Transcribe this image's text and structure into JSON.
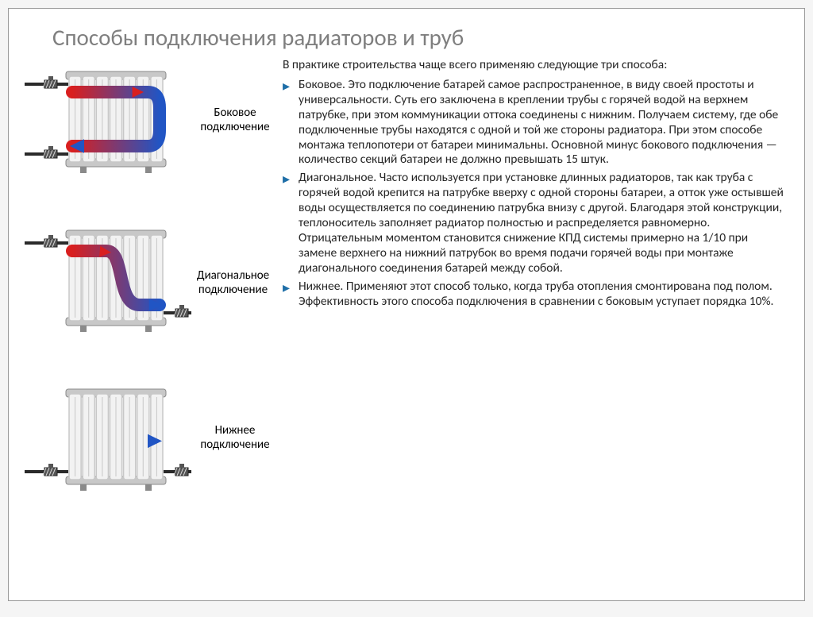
{
  "title": "Способы подключения радиаторов и труб",
  "intro": "В практике строительства чаще всего применяю следующие три способа:",
  "bullets": [
    "Боковое. Это подключение батарей самое распространенное, в виду своей простоты и универсальности. Суть его заключена в креплении трубы с горячей водой на верхнем патрубке, при этом коммуникации оттока соединены с нижним. Получаем систему, где обе подключенные трубы находятся с одной и той же стороны радиатора. При этом способе монтажа теплопотери от батареи минимальны. Основной минус бокового подключения — количество секций батареи не должно превышать 15 штук.",
    "Диагональное. Часто используется при установке длинных радиаторов, так как труба с горячей водой крепится на патрубке вверху с одной стороны батареи, а отток уже остывшей воды осуществляется по соединению патрубка внизу с другой. Благодаря этой конструкции, теплоноситель заполняет радиатор полностью и распределяется равномерно. Отрицательным моментом становится снижение КПД системы примерно на 1/10 при замене верхнего на нижний патрубок во время подачи горячей воды при монтаже диагонального соединения батарей между собой.",
    "Нижнее. Применяют этот способ только, когда труба отопления смонтирована под полом. Эффективность этого способа подключения в сравнении с боковым уступает порядка 10%."
  ],
  "labels": {
    "side": "Боковое подключение",
    "diag": "Диагональное подключение",
    "bottom": "Нижнее подключение"
  },
  "colors": {
    "hot": "#d91f1f",
    "cold": "#2155c4",
    "pipe": "#2a2a2a",
    "rad_body": "#f2f2f2",
    "rad_rib": "#c8c8c8",
    "rad_edge": "#8a8a8a"
  }
}
